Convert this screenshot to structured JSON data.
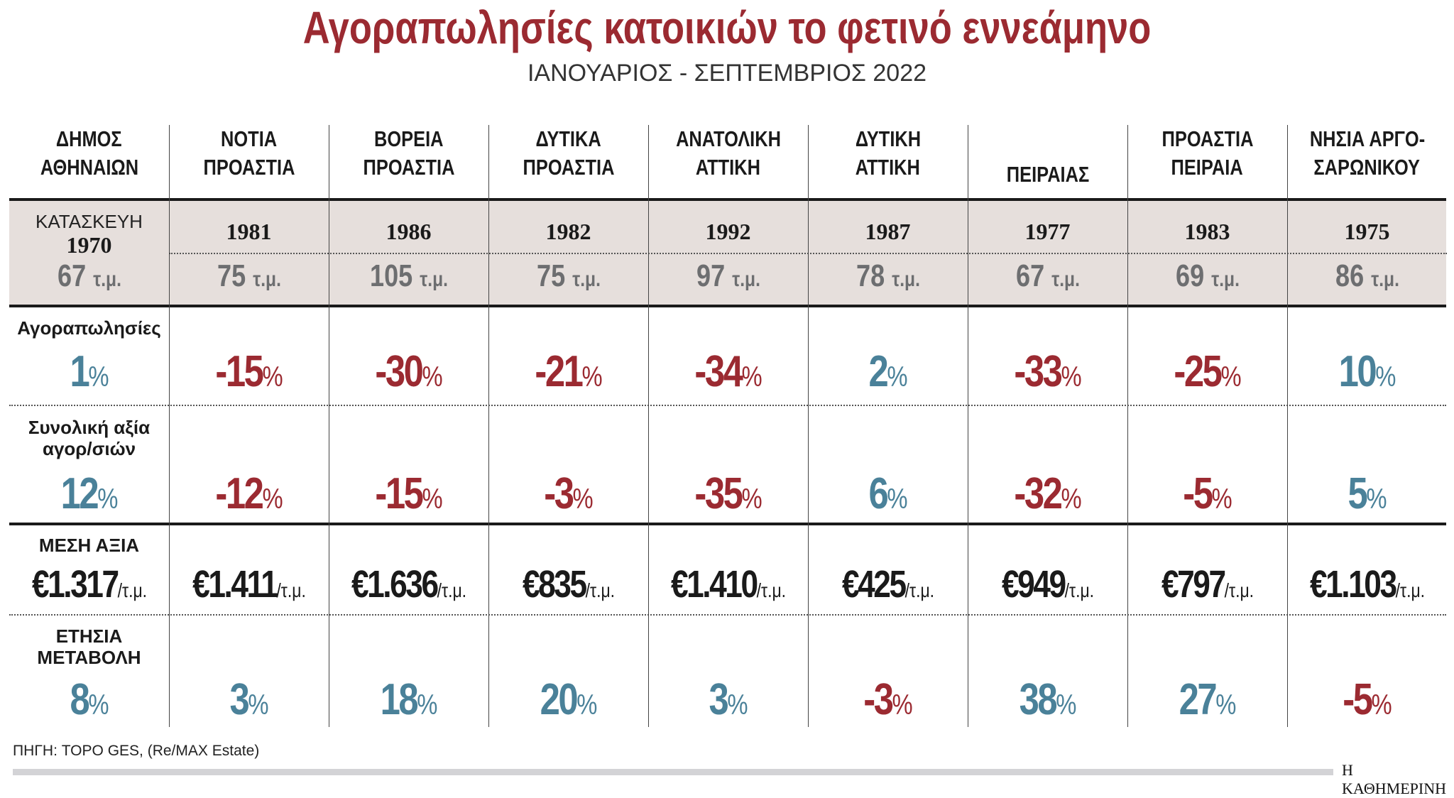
{
  "title": "Αγοραπωλησίες κατοικιών το φετινό εννεάμηνο",
  "subtitle": "ΙΑΝΟΥΑΡΙΟΣ - ΣΕΠΤΕΜΒΡΙΟΣ 2022",
  "colors": {
    "negative": "#9b2a31",
    "positive": "#4a8199",
    "band": "#e6dfdc",
    "area_text": "#6d6e70"
  },
  "row_labels": {
    "construction": "ΚΑΤΑΣΚΕΥΗ",
    "sales": "Αγοραπωλησίες",
    "total_value": [
      "Συνολική αξία",
      "αγορ/σιών"
    ],
    "avg_price": "ΜΕΣΗ ΑΞΙΑ",
    "annual_change": [
      "ΕΤΗΣΙΑ",
      "ΜΕΤΑΒΟΛΗ"
    ]
  },
  "units": {
    "area": "τ.μ.",
    "percent": "%",
    "per_sqm": "/τ.μ."
  },
  "columns": [
    {
      "name": [
        "ΔΗΜΟΣ",
        "ΑΘΗΝΑΙΩΝ"
      ],
      "year": "1970",
      "area": "67",
      "sales": "1",
      "total_value": "12",
      "avg_price": "€1.317",
      "annual_change": "8"
    },
    {
      "name": [
        "ΝΟΤΙΑ",
        "ΠΡΟΑΣΤΙΑ"
      ],
      "year": "1981",
      "area": "75",
      "sales": "-15",
      "total_value": "-12",
      "avg_price": "€1.411",
      "annual_change": "3"
    },
    {
      "name": [
        "ΒΟΡΕΙΑ",
        "ΠΡΟΑΣΤΙΑ"
      ],
      "year": "1986",
      "area": "105",
      "sales": "-30",
      "total_value": "-15",
      "avg_price": "€1.636",
      "annual_change": "18"
    },
    {
      "name": [
        "ΔΥΤΙΚΑ",
        "ΠΡΟΑΣΤΙΑ"
      ],
      "year": "1982",
      "area": "75",
      "sales": "-21",
      "total_value": "-3",
      "avg_price": "€835",
      "annual_change": "20"
    },
    {
      "name": [
        "ΑΝΑΤΟΛΙΚΗ",
        "ΑΤΤΙΚΗ"
      ],
      "year": "1992",
      "area": "97",
      "sales": "-34",
      "total_value": "-35",
      "avg_price": "€1.410",
      "annual_change": "3"
    },
    {
      "name": [
        "ΔΥΤΙΚΗ",
        "ΑΤΤΙΚΗ"
      ],
      "year": "1987",
      "area": "78",
      "sales": "2",
      "total_value": "6",
      "avg_price": "€425",
      "annual_change": "-3"
    },
    {
      "name": [
        "",
        "ΠΕΙΡΑΙΑΣ"
      ],
      "year": "1977",
      "area": "67",
      "sales": "-33",
      "total_value": "-32",
      "avg_price": "€949",
      "annual_change": "38"
    },
    {
      "name": [
        "ΠΡΟΑΣΤΙΑ",
        "ΠΕΙΡΑΙΑ"
      ],
      "year": "1983",
      "area": "69",
      "sales": "-25",
      "total_value": "-5",
      "avg_price": "€797",
      "annual_change": "27"
    },
    {
      "name": [
        "ΝΗΣΙΑ ΑΡΓΟ-",
        "ΣΑΡΩΝΙΚΟΥ"
      ],
      "year": "1975",
      "area": "86",
      "sales": "10",
      "total_value": "5",
      "avg_price": "€1.103",
      "annual_change": "-5"
    }
  ],
  "source": "ΠΗΓΗ: TOPO GES, (Re/MAX Estate)",
  "brand": "Η ΚΑΘΗΜΕΡΙΝΗ"
}
